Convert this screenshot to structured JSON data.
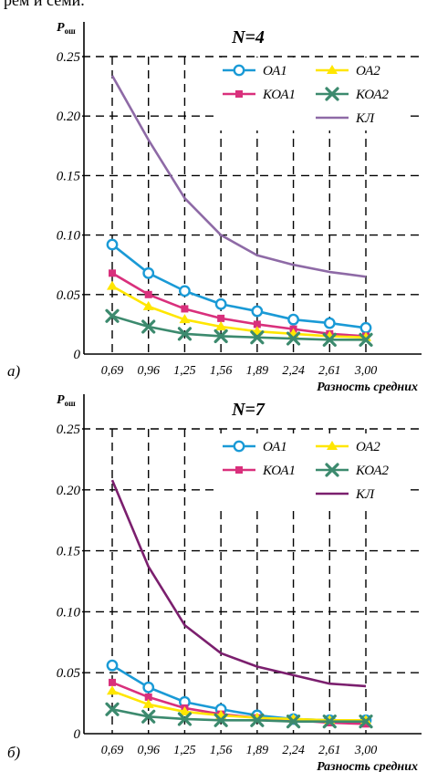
{
  "page": {
    "top_text_fragment": "рем и семи."
  },
  "chart_data": [
    {
      "type": "line",
      "panel_label": "а)",
      "title": "N=4",
      "ylabel": "P",
      "ylabel_sub": "ош",
      "xlabel": "Разность средних",
      "categories": [
        "0,69",
        "0,96",
        "1,25",
        "1,56",
        "1,89",
        "2,24",
        "2,61",
        "3,00"
      ],
      "y_ticks": [
        "0",
        "0.05",
        "0.10",
        "0.15",
        "0.20",
        "0.25"
      ],
      "ylim": [
        0,
        0.25
      ],
      "grid": true,
      "legend_position": "top-right",
      "series": [
        {
          "name": "ОА1",
          "color": "#1a9ad6",
          "marker": "circle",
          "values": [
            0.092,
            0.068,
            0.053,
            0.042,
            0.036,
            0.029,
            0.026,
            0.022
          ]
        },
        {
          "name": "ОА2",
          "color": "#ffe600",
          "marker": "triangle",
          "values": [
            0.057,
            0.04,
            0.029,
            0.023,
            0.019,
            0.017,
            0.015,
            0.014
          ]
        },
        {
          "name": "КОА1",
          "color": "#d9307c",
          "marker": "square",
          "values": [
            0.068,
            0.05,
            0.038,
            0.03,
            0.025,
            0.021,
            0.017,
            0.015
          ]
        },
        {
          "name": "КОА2",
          "color": "#3c8a6e",
          "marker": "x",
          "values": [
            0.032,
            0.023,
            0.017,
            0.015,
            0.014,
            0.013,
            0.012,
            0.012
          ]
        },
        {
          "name": "КЛ",
          "color": "#8e6aa6",
          "marker": "none",
          "values": [
            0.234,
            0.18,
            0.131,
            0.1,
            0.083,
            0.075,
            0.069,
            0.065
          ]
        }
      ]
    },
    {
      "type": "line",
      "panel_label": "б)",
      "title": "N=7",
      "ylabel": "P",
      "ylabel_sub": "ош",
      "xlabel": "Разность средних",
      "categories": [
        "0,69",
        "0,96",
        "1,25",
        "1,56",
        "1,89",
        "2,24",
        "2,61",
        "3,00"
      ],
      "y_ticks": [
        "0",
        "0.05",
        "0.10",
        "0.15",
        "0.20",
        "0.25"
      ],
      "ylim": [
        0,
        0.25
      ],
      "grid": true,
      "legend_position": "top-right",
      "series": [
        {
          "name": "ОА1",
          "color": "#1a9ad6",
          "marker": "circle",
          "values": [
            0.056,
            0.038,
            0.026,
            0.02,
            0.015,
            0.012,
            0.011,
            0.011
          ]
        },
        {
          "name": "ОА2",
          "color": "#ffe600",
          "marker": "triangle",
          "values": [
            0.035,
            0.024,
            0.018,
            0.015,
            0.013,
            0.012,
            0.011,
            0.011
          ]
        },
        {
          "name": "КОА1",
          "color": "#d9307c",
          "marker": "square",
          "values": [
            0.042,
            0.03,
            0.021,
            0.016,
            0.013,
            0.011,
            0.009,
            0.008
          ]
        },
        {
          "name": "КОА2",
          "color": "#3c8a6e",
          "marker": "x",
          "values": [
            0.02,
            0.014,
            0.012,
            0.011,
            0.011,
            0.01,
            0.01,
            0.01
          ]
        },
        {
          "name": "КЛ",
          "color": "#7b1f6e",
          "marker": "none",
          "values": [
            0.208,
            0.137,
            0.089,
            0.066,
            0.055,
            0.048,
            0.041,
            0.039
          ]
        }
      ]
    }
  ]
}
